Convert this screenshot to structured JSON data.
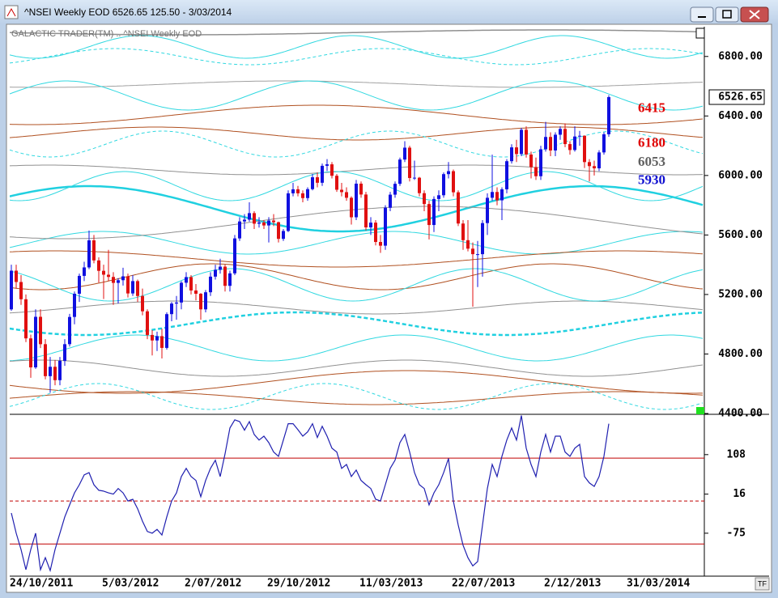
{
  "window_title": "^NSEI Weekly EOD  6526.65   125.50 - 3/03/2014",
  "tf_button": "TF",
  "chart_data": [
    {
      "type": "candlestick",
      "subtitle": "GALACTIC TRADER(TM) .. ^NSEI Weekly EOD",
      "up_color": "#1010e0",
      "down_color": "#e01010",
      "ylim": [
        4400,
        7000
      ],
      "yticks": [
        {
          "value": 4400,
          "label": "4400.00"
        },
        {
          "value": 4800,
          "label": "4800.00"
        },
        {
          "value": 5200,
          "label": "5200.00"
        },
        {
          "value": 5600,
          "label": "5600.00"
        },
        {
          "value": 6000,
          "label": "6000.00"
        },
        {
          "value": 6400,
          "label": "6400.00"
        },
        {
          "value": 6800,
          "label": "6800.00"
        }
      ],
      "last_price": 6526.65,
      "levels": [
        {
          "value": 6415,
          "color": "#e00000"
        },
        {
          "value": 6180,
          "color": "#e00000"
        },
        {
          "value": 6053,
          "color": "#606060"
        },
        {
          "value": 5930,
          "color": "#1010d0"
        }
      ],
      "categories": [
        "24/10/2011",
        null,
        null,
        null,
        null,
        null,
        null,
        null,
        null,
        null,
        null,
        null,
        null,
        null,
        null,
        null,
        null,
        null,
        null,
        "5/03/2012",
        null,
        null,
        null,
        null,
        null,
        null,
        null,
        null,
        null,
        null,
        null,
        null,
        null,
        null,
        null,
        null,
        "2/07/2012",
        null,
        null,
        null,
        null,
        null,
        null,
        null,
        null,
        null,
        null,
        null,
        null,
        null,
        null,
        null,
        null,
        "29/10/2012",
        null,
        null,
        null,
        null,
        null,
        null,
        null,
        null,
        null,
        null,
        null,
        null,
        null,
        null,
        null,
        null,
        null,
        null,
        "11/03/2013",
        null,
        null,
        null,
        null,
        null,
        null,
        null,
        null,
        null,
        null,
        null,
        null,
        null,
        null,
        null,
        null,
        null,
        null,
        "22/07/2013",
        null,
        null,
        null,
        null,
        null,
        null,
        null,
        null,
        null,
        null,
        null,
        null,
        null,
        null,
        null,
        null,
        null,
        null,
        "2/12/2013",
        null,
        null,
        null,
        null,
        null,
        null,
        null,
        null,
        null,
        null,
        null,
        null,
        null,
        null,
        null,
        null,
        "31/03/2014",
        null,
        null,
        null,
        null,
        null,
        null,
        null,
        null,
        null,
        null,
        null,
        null,
        null,
        null,
        null
      ],
      "ohlc": [
        [
          5100,
          5400,
          5090,
          5360
        ],
        [
          5360,
          5400,
          5240,
          5284
        ],
        [
          5284,
          5330,
          5130,
          5168
        ],
        [
          5168,
          5200,
          4880,
          4905
        ],
        [
          4905,
          4930,
          4640,
          4710
        ],
        [
          4710,
          5100,
          4700,
          5050
        ],
        [
          5050,
          5100,
          4840,
          4866
        ],
        [
          4866,
          4900,
          4630,
          4651
        ],
        [
          4651,
          4780,
          4540,
          4714
        ],
        [
          4714,
          4760,
          4590,
          4624
        ],
        [
          4624,
          4780,
          4590,
          4754
        ],
        [
          4754,
          4900,
          4720,
          4866
        ],
        [
          4866,
          5070,
          4850,
          5049
        ],
        [
          5049,
          5220,
          5000,
          5205
        ],
        [
          5205,
          5340,
          5150,
          5325
        ],
        [
          5325,
          5420,
          5290,
          5382
        ],
        [
          5382,
          5630,
          5370,
          5564
        ],
        [
          5564,
          5600,
          5410,
          5429
        ],
        [
          5429,
          5450,
          5280,
          5359
        ],
        [
          5359,
          5400,
          5170,
          5333
        ],
        [
          5333,
          5500,
          5290,
          5318
        ],
        [
          5318,
          5350,
          5130,
          5278
        ],
        [
          5278,
          5310,
          5140,
          5296
        ],
        [
          5296,
          5380,
          5260,
          5322
        ],
        [
          5322,
          5340,
          5180,
          5207
        ],
        [
          5207,
          5330,
          5190,
          5290
        ],
        [
          5290,
          5300,
          5150,
          5190
        ],
        [
          5190,
          5240,
          5060,
          5087
        ],
        [
          5087,
          5100,
          4900,
          4928
        ],
        [
          4928,
          4960,
          4790,
          4891
        ],
        [
          4891,
          4950,
          4820,
          4920
        ],
        [
          4920,
          4970,
          4770,
          4841
        ],
        [
          4841,
          5080,
          4830,
          5068
        ],
        [
          5068,
          5150,
          5020,
          5139
        ],
        [
          5139,
          5190,
          5030,
          5146
        ],
        [
          5146,
          5290,
          5100,
          5279
        ],
        [
          5279,
          5350,
          5250,
          5317
        ],
        [
          5317,
          5330,
          5200,
          5227
        ],
        [
          5227,
          5270,
          5160,
          5205
        ],
        [
          5205,
          5210,
          5030,
          5100
        ],
        [
          5100,
          5230,
          5080,
          5215
        ],
        [
          5215,
          5350,
          5190,
          5320
        ],
        [
          5320,
          5400,
          5300,
          5366
        ],
        [
          5366,
          5440,
          5340,
          5387
        ],
        [
          5387,
          5400,
          5220,
          5258
        ],
        [
          5258,
          5360,
          5220,
          5342
        ],
        [
          5342,
          5600,
          5330,
          5577
        ],
        [
          5577,
          5720,
          5560,
          5691
        ],
        [
          5691,
          5740,
          5640,
          5703
        ],
        [
          5703,
          5820,
          5690,
          5747
        ],
        [
          5747,
          5760,
          5640,
          5676
        ],
        [
          5676,
          5720,
          5650,
          5684
        ],
        [
          5684,
          5700,
          5640,
          5664
        ],
        [
          5664,
          5720,
          5550,
          5697
        ],
        [
          5697,
          5740,
          5660,
          5686
        ],
        [
          5686,
          5690,
          5550,
          5574
        ],
        [
          5574,
          5640,
          5560,
          5627
        ],
        [
          5627,
          5900,
          5620,
          5880
        ],
        [
          5880,
          5950,
          5860,
          5907
        ],
        [
          5907,
          5930,
          5860,
          5880
        ],
        [
          5880,
          5900,
          5820,
          5848
        ],
        [
          5848,
          5920,
          5830,
          5908
        ],
        [
          5908,
          6010,
          5900,
          5988
        ],
        [
          5988,
          6020,
          5920,
          5951
        ],
        [
          5951,
          6080,
          5930,
          6065
        ],
        [
          6065,
          6110,
          6030,
          6075
        ],
        [
          6075,
          6090,
          5980,
          5998
        ],
        [
          5998,
          6010,
          5890,
          5904
        ],
        [
          5904,
          5950,
          5860,
          5888
        ],
        [
          5888,
          5920,
          5830,
          5850
        ],
        [
          5850,
          5860,
          5670,
          5719
        ],
        [
          5719,
          5970,
          5700,
          5945
        ],
        [
          5945,
          5960,
          5850,
          5872
        ],
        [
          5872,
          5890,
          5630,
          5651
        ],
        [
          5651,
          5720,
          5600,
          5683
        ],
        [
          5683,
          5700,
          5530,
          5553
        ],
        [
          5553,
          5600,
          5480,
          5528
        ],
        [
          5528,
          5800,
          5500,
          5783
        ],
        [
          5783,
          5890,
          5760,
          5871
        ],
        [
          5871,
          5960,
          5850,
          5944
        ],
        [
          5944,
          6120,
          5930,
          6107
        ],
        [
          6107,
          6230,
          6090,
          6187
        ],
        [
          6187,
          6200,
          5960,
          5983
        ],
        [
          5983,
          6100,
          5970,
          5985
        ],
        [
          5985,
          5990,
          5860,
          5881
        ],
        [
          5881,
          5900,
          5760,
          5808
        ],
        [
          5808,
          5830,
          5570,
          5667
        ],
        [
          5667,
          5860,
          5620,
          5842
        ],
        [
          5842,
          5900,
          5760,
          5867
        ],
        [
          5867,
          6020,
          5850,
          6009
        ],
        [
          6009,
          6090,
          5980,
          6029
        ],
        [
          6029,
          6040,
          5860,
          5887
        ],
        [
          5887,
          5900,
          5660,
          5677
        ],
        [
          5677,
          5700,
          5500,
          5565
        ],
        [
          5565,
          5700,
          5490,
          5508
        ],
        [
          5508,
          5550,
          5118,
          5471
        ],
        [
          5471,
          5560,
          5250,
          5471
        ],
        [
          5471,
          5700,
          5320,
          5680
        ],
        [
          5680,
          5880,
          5600,
          5850
        ],
        [
          5850,
          6140,
          5830,
          5889
        ],
        [
          5889,
          5920,
          5800,
          5833
        ],
        [
          5833,
          5920,
          5700,
          5907
        ],
        [
          5907,
          6110,
          5880,
          6096
        ],
        [
          6096,
          6210,
          6080,
          6189
        ],
        [
          6189,
          6240,
          6090,
          6144
        ],
        [
          6144,
          6320,
          6130,
          6307
        ],
        [
          6307,
          6330,
          6120,
          6141
        ],
        [
          6141,
          6160,
          5980,
          6056
        ],
        [
          6056,
          6120,
          5970,
          5995
        ],
        [
          5995,
          6200,
          5970,
          6176
        ],
        [
          6176,
          6360,
          6160,
          6259
        ],
        [
          6259,
          6290,
          6130,
          6168
        ],
        [
          6168,
          6290,
          6130,
          6274
        ],
        [
          6274,
          6330,
          6240,
          6313
        ],
        [
          6313,
          6350,
          6190,
          6211
        ],
        [
          6211,
          6230,
          6140,
          6171
        ],
        [
          6171,
          6330,
          6160,
          6262
        ],
        [
          6262,
          6300,
          6200,
          6267
        ],
        [
          6267,
          6270,
          6050,
          6090
        ],
        [
          6090,
          6110,
          5960,
          6063
        ],
        [
          6063,
          6100,
          6000,
          6048
        ],
        [
          6048,
          6170,
          6030,
          6155
        ],
        [
          6155,
          6290,
          6140,
          6277
        ],
        [
          6277,
          6540,
          6260,
          6526.65
        ],
        null,
        null,
        null,
        null,
        null,
        null,
        null,
        null,
        null,
        null,
        null,
        null,
        null,
        null,
        null,
        null,
        null,
        null,
        null
      ]
    },
    {
      "type": "line",
      "color": "#2020b0",
      "ylim": [
        -175,
        200
      ],
      "yticks": [
        108,
        16,
        -75
      ],
      "reference_lines": [
        100,
        0,
        -100
      ],
      "reference_color": "#c00000",
      "values": [
        -28,
        -75,
        -113,
        -160,
        -113,
        -75,
        -160,
        -132,
        -162,
        -113,
        -75,
        -37,
        -9,
        19,
        38,
        61,
        66,
        38,
        25,
        23,
        19,
        16,
        29,
        19,
        0,
        4,
        -18,
        -47,
        -71,
        -75,
        -66,
        -79,
        -37,
        0,
        19,
        57,
        76,
        57,
        48,
        10,
        48,
        76,
        95,
        57,
        110,
        170,
        189,
        185,
        165,
        185,
        155,
        142,
        151,
        136,
        114,
        104,
        142,
        180,
        180,
        166,
        151,
        161,
        180,
        148,
        174,
        151,
        123,
        114,
        76,
        85,
        57,
        72,
        48,
        38,
        29,
        4,
        0,
        38,
        76,
        95,
        136,
        155,
        114,
        66,
        38,
        29,
        -9,
        19,
        38,
        66,
        99,
        0,
        -56,
        -103,
        -132,
        -151,
        -141,
        -56,
        29,
        85,
        57,
        104,
        142,
        170,
        142,
        199,
        123,
        85,
        57,
        114,
        155,
        114,
        151,
        151,
        114,
        104,
        123,
        132,
        57,
        42,
        34,
        57,
        104,
        180,
        null,
        null,
        null,
        null,
        null,
        null,
        null,
        null,
        null,
        null,
        null,
        null,
        null,
        null,
        null,
        null,
        null,
        null,
        null
      ]
    }
  ]
}
